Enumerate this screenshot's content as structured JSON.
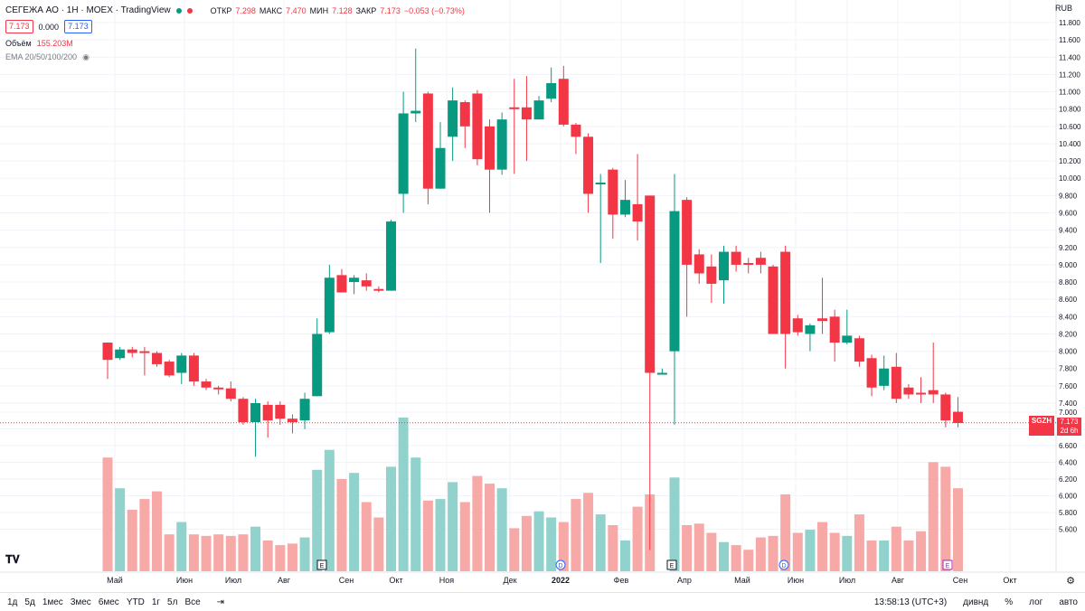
{
  "header": {
    "symbol": "СЕГЕЖА АО · 1Н · MOEX · TradingView",
    "open_label": "ОТКР",
    "open": "7.298",
    "high_label": "МАКС",
    "high": "7.470",
    "low_label": "МИН",
    "low": "7.128",
    "close_label": "ЗАКР",
    "close": "7.173",
    "change": "−0.053 (−0.73%)",
    "bid": "7.173",
    "spread": "0.000",
    "ask": "7.173",
    "volume_label": "Объём",
    "volume": "155.203M",
    "ema_label": "EMA 20/50/100/200"
  },
  "currency": "RUB",
  "price_tag": {
    "symbol": "SGZH",
    "price": "7.173",
    "countdown": "2d 6h"
  },
  "colors": {
    "up": "#089981",
    "down": "#f23645",
    "up_vol": "#92d2cc",
    "down_vol": "#f7a9a7"
  },
  "chart_data": {
    "type": "candlestick",
    "y_axis_ticks": [
      "11.800",
      "11.600",
      "11.400",
      "11.200",
      "11.000",
      "10.800",
      "10.600",
      "10.400",
      "10.200",
      "10.000",
      "9.800",
      "9.600",
      "9.400",
      "9.200",
      "9.000",
      "8.800",
      "8.600",
      "8.400",
      "8.200",
      "8.000",
      "7.800",
      "7.600",
      "7.400",
      "7.000",
      "6.800",
      "6.600",
      "6.400",
      "6.200",
      "6.000",
      "5.800",
      "5.600"
    ],
    "x_axis_labels": [
      "Май",
      "Июн",
      "Июл",
      "Авг",
      "Сен",
      "Окт",
      "Ноя",
      "Дек",
      "2022",
      "Фев",
      "Апр",
      "Май",
      "Июн",
      "Июл",
      "Авг",
      "Сен",
      "Окт"
    ],
    "candles": [
      [
        8.1,
        7.9,
        8.1,
        7.68
      ],
      [
        7.92,
        8.02,
        8.05,
        7.9
      ],
      [
        8.02,
        7.98,
        8.05,
        7.93
      ],
      [
        8.0,
        7.98,
        8.05,
        7.72
      ],
      [
        7.98,
        7.85,
        8.0,
        7.82
      ],
      [
        7.88,
        7.72,
        7.9,
        7.7
      ],
      [
        7.75,
        7.95,
        7.98,
        7.62
      ],
      [
        7.95,
        7.65,
        7.98,
        7.6
      ],
      [
        7.65,
        7.58,
        7.68,
        7.55
      ],
      [
        7.58,
        7.57,
        7.6,
        7.5
      ],
      [
        7.57,
        7.45,
        7.65,
        7.42
      ],
      [
        7.45,
        7.18,
        7.47,
        7.15
      ],
      [
        7.18,
        7.4,
        7.45,
        6.78
      ],
      [
        7.38,
        7.2,
        7.42,
        7.0
      ],
      [
        7.38,
        7.22,
        7.42,
        7.15
      ],
      [
        7.22,
        7.18,
        7.27,
        7.05
      ],
      [
        7.2,
        7.45,
        7.52,
        7.1
      ],
      [
        7.48,
        8.2,
        8.38,
        7.48
      ],
      [
        8.22,
        8.85,
        9.0,
        8.2
      ],
      [
        8.88,
        8.68,
        8.95,
        8.68
      ],
      [
        8.8,
        8.85,
        8.88,
        8.66
      ],
      [
        8.82,
        8.75,
        8.9,
        8.7
      ],
      [
        8.72,
        8.7,
        8.75,
        8.68
      ],
      [
        8.7,
        9.5,
        9.52,
        8.7
      ],
      [
        9.82,
        10.75,
        11.0,
        9.6
      ],
      [
        10.75,
        10.78,
        11.5,
        10.65
      ],
      [
        10.98,
        9.88,
        11.0,
        9.7
      ],
      [
        9.88,
        10.35,
        10.65,
        9.88
      ],
      [
        10.48,
        10.9,
        11.05,
        10.2
      ],
      [
        10.88,
        10.6,
        10.9,
        10.35
      ],
      [
        10.98,
        10.22,
        11.02,
        10.15
      ],
      [
        10.6,
        10.1,
        10.68,
        9.6
      ],
      [
        10.1,
        10.68,
        10.76,
        10.04
      ],
      [
        10.82,
        10.8,
        11.15,
        10.05
      ],
      [
        10.82,
        10.68,
        11.18,
        10.2
      ],
      [
        10.68,
        10.9,
        10.95,
        10.68
      ],
      [
        10.92,
        11.1,
        11.28,
        10.88
      ],
      [
        11.15,
        10.62,
        11.3,
        10.6
      ],
      [
        10.62,
        10.48,
        10.64,
        10.28
      ],
      [
        10.48,
        9.82,
        10.52,
        9.6
      ],
      [
        9.95,
        9.95,
        10.05,
        9.02
      ],
      [
        10.1,
        9.58,
        10.12,
        9.3
      ],
      [
        9.58,
        9.75,
        9.98,
        9.55
      ],
      [
        9.7,
        9.5,
        10.28,
        9.28
      ],
      [
        9.8,
        7.75,
        9.8,
        5.7
      ],
      [
        7.75,
        7.75,
        7.8,
        7.75
      ],
      [
        8.0,
        9.62,
        10.05,
        7.15
      ],
      [
        9.75,
        9.0,
        9.78,
        8.4
      ],
      [
        9.12,
        8.9,
        9.18,
        8.78
      ],
      [
        8.98,
        8.78,
        9.12,
        8.56
      ],
      [
        8.82,
        9.15,
        9.22,
        8.55
      ],
      [
        9.15,
        9.0,
        9.22,
        8.92
      ],
      [
        9.02,
        9.0,
        9.08,
        8.9
      ],
      [
        9.08,
        9.0,
        9.15,
        8.9
      ],
      [
        8.98,
        8.2,
        9.0,
        8.2
      ],
      [
        9.15,
        8.2,
        9.22,
        7.8
      ],
      [
        8.38,
        8.22,
        8.42,
        8.18
      ],
      [
        8.2,
        8.3,
        8.32,
        8.0
      ],
      [
        8.38,
        8.35,
        8.85,
        8.2
      ],
      [
        8.4,
        8.1,
        8.48,
        7.88
      ],
      [
        8.1,
        8.18,
        8.48,
        8.08
      ],
      [
        8.15,
        7.88,
        8.18,
        7.82
      ],
      [
        7.92,
        7.58,
        7.96,
        7.48
      ],
      [
        7.6,
        7.8,
        7.95,
        7.55
      ],
      [
        7.82,
        7.45,
        7.98,
        7.4
      ],
      [
        7.58,
        7.5,
        7.62,
        7.45
      ],
      [
        7.52,
        7.5,
        7.7,
        7.4
      ],
      [
        7.55,
        7.5,
        8.1,
        7.4
      ],
      [
        7.5,
        7.2,
        7.52,
        7.12
      ],
      [
        7.3,
        7.17,
        7.47,
        7.12
      ]
    ],
    "volume_levels": [
      0.74,
      0.54,
      0.4,
      0.47,
      0.52,
      0.24,
      0.32,
      0.24,
      0.23,
      0.24,
      0.23,
      0.24,
      0.29,
      0.2,
      0.17,
      0.18,
      0.22,
      0.66,
      0.79,
      0.6,
      0.64,
      0.45,
      0.35,
      0.68,
      1.0,
      0.74,
      0.46,
      0.47,
      0.58,
      0.45,
      0.62,
      0.57,
      0.54,
      0.28,
      0.36,
      0.39,
      0.35,
      0.32,
      0.47,
      0.51,
      0.37,
      0.3,
      0.2,
      0.42,
      0.5,
      0.0,
      0.61,
      0.3,
      0.31,
      0.25,
      0.19,
      0.17,
      0.14,
      0.22,
      0.23,
      0.5,
      0.25,
      0.27,
      0.32,
      0.25,
      0.23,
      0.37,
      0.2,
      0.2,
      0.29,
      0.2,
      0.26,
      0.71,
      0.68,
      0.54
    ]
  },
  "toolbar": {
    "ranges": [
      "1д",
      "5д",
      "1мес",
      "3мес",
      "6мес",
      "YTD",
      "1г",
      "5л",
      "Все"
    ],
    "time": "13:58:13 (UTC+3)",
    "right": [
      "дивнд",
      "%",
      "лог",
      "авто"
    ]
  },
  "markers": {
    "earnings_label": "E",
    "dividend_label": "D"
  }
}
